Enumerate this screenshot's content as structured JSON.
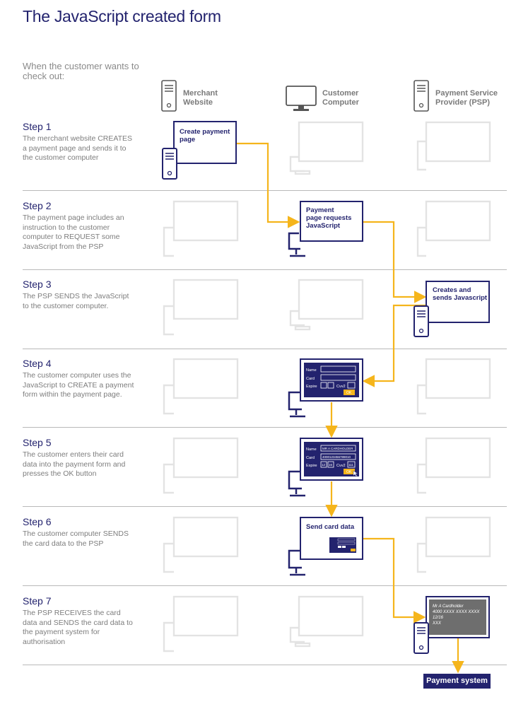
{
  "title": "The JavaScript created form",
  "intro": "When the customer wants to check out:",
  "columns": {
    "merchant": "Merchant\nWebsite",
    "customer": "Customer\nComputer",
    "psp": "Payment Service\nProvider (PSP)"
  },
  "steps": [
    {
      "title": "Step 1",
      "text": "The merchant website CREATES a payment page and sends it to the customer computer"
    },
    {
      "title": "Step 2",
      "text": "The payment page includes an instruction to the customer computer to REQUEST some JavaScript from the PSP"
    },
    {
      "title": "Step 3",
      "text": "The PSP SENDS the JavaScript to the customer computer."
    },
    {
      "title": "Step 4",
      "text": "The customer computer uses the JavaScript to CREATE a payment form within the payment page."
    },
    {
      "title": "Step 5",
      "text": "The customer enters their card data into the payment form and presses the OK button"
    },
    {
      "title": "Step 6",
      "text": "The customer computer SENDS the card data to the PSP"
    },
    {
      "title": "Step 7",
      "text": "The PSP RECEIVES the card data and SENDS the card data to the payment system for authorisation"
    }
  ],
  "boxes": {
    "create_page": "Create payment page",
    "payment_requests": "Payment page requests JavaScript",
    "creates_sends": "Creates and sends Javascript",
    "send_card": "Send card data",
    "payment_system": "Payment system"
  },
  "form": {
    "name_label": "Name",
    "card_label": "Card",
    "expire_label": "Expire",
    "cvv_label": "Cvv2",
    "ok_label": "OK",
    "name_value": "MR A CARDHOLDER",
    "card_value": "4000123456789010",
    "expire_month": "12",
    "expire_year": "16",
    "cvv_value": "111"
  },
  "receipt": {
    "name": "Mr A Cardholder",
    "card": "4000 XXXX XXXX XXXX",
    "expiry": "12/16",
    "cvv": "XXX"
  },
  "colors": {
    "navy": "#23236e",
    "arrow": "#f5b51c",
    "ghost": "#e3e3e3"
  }
}
